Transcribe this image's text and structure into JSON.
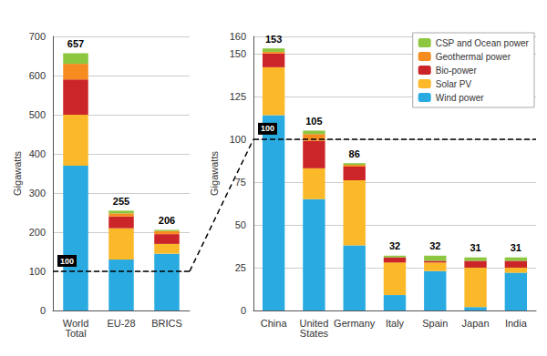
{
  "chart_data": [
    {
      "type": "bar",
      "stacked": true,
      "grid": true,
      "categories": [
        "World\nTotal",
        "EU-28",
        "BRICS"
      ],
      "series": [
        {
          "name": "Wind power",
          "color": "#29ABE2",
          "values": [
            370,
            130,
            145
          ]
        },
        {
          "name": "Solar PV",
          "color": "#FBB829",
          "values": [
            130,
            80,
            25
          ]
        },
        {
          "name": "Bio-power",
          "color": "#CC2529",
          "values": [
            90,
            30,
            25
          ]
        },
        {
          "name": "Geothermal power",
          "color": "#F68B1F",
          "values": [
            40,
            8,
            8
          ]
        },
        {
          "name": "CSP and Ocean power",
          "color": "#8DC63F",
          "values": [
            27,
            7,
            3
          ]
        }
      ],
      "totals": [
        657,
        255,
        206
      ],
      "ylim": [
        0,
        700
      ],
      "yticks": [
        0,
        100,
        200,
        300,
        400,
        500,
        600,
        700
      ],
      "ylabel": "Gigawatts",
      "annotations": [
        {
          "text": "100",
          "y": 100,
          "line_style": "dashed"
        }
      ]
    },
    {
      "type": "bar",
      "stacked": true,
      "grid": true,
      "legend": "upper right",
      "categories": [
        "China",
        "United\nStates",
        "Germany",
        "Italy",
        "Spain",
        "Japan",
        "India"
      ],
      "series": [
        {
          "name": "Wind power",
          "color": "#29ABE2",
          "values": [
            114,
            65,
            38,
            9,
            23,
            2,
            22
          ]
        },
        {
          "name": "Solar PV",
          "color": "#FBB829",
          "values": [
            28,
            18,
            38,
            19,
            5,
            23,
            3
          ]
        },
        {
          "name": "Bio-power",
          "color": "#CC2529",
          "values": [
            8,
            16,
            8,
            3,
            1,
            4,
            4
          ]
        },
        {
          "name": "Geothermal power",
          "color": "#F68B1F",
          "values": [
            1,
            4,
            1,
            0,
            0,
            0,
            0
          ]
        },
        {
          "name": "CSP and Ocean power",
          "color": "#8DC63F",
          "values": [
            2,
            2,
            1,
            1,
            3,
            2,
            2
          ]
        }
      ],
      "totals": [
        153,
        105,
        86,
        32,
        32,
        31,
        31
      ],
      "ylim": [
        0,
        160
      ],
      "yticks": [
        0,
        25,
        50,
        75,
        100,
        125,
        150
      ],
      "ylabel": "Gigawatts",
      "annotations": [
        {
          "text": "100",
          "y": 100,
          "line_style": "dashed"
        }
      ]
    }
  ]
}
